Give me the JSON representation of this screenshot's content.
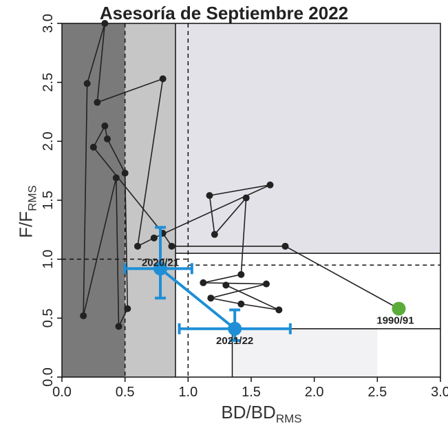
{
  "chart_data": {
    "type": "scatter",
    "title": "Asesoría de Septiembre 2022",
    "xlabel_main": "BD/BD",
    "xlabel_sub": "RMS",
    "ylabel_main": "F/F",
    "ylabel_sub": "RMS",
    "xlim": [
      0,
      3.0
    ],
    "ylim": [
      0,
      3.0
    ],
    "xticks": [
      "0.0",
      "0.5",
      "1.0",
      "1.5",
      "2.0",
      "2.5",
      "3.0"
    ],
    "yticks": [
      "0.0",
      "0.5",
      "1.0",
      "1.5",
      "2.0",
      "2.5",
      "3.0"
    ],
    "reference_lines": {
      "bd_limit": 0.5,
      "bd_msy": 0.9,
      "bd_target": 1.0,
      "f_target": 1.0,
      "f_limit": 0.95
    },
    "series": [
      {
        "values": [
          {
            "x": 2.67,
            "y": 0.58
          },
          {
            "x": 1.77,
            "y": 1.11
          },
          {
            "x": 0.87,
            "y": 1.11
          },
          {
            "x": 0.8,
            "y": 1.22
          },
          {
            "x": 0.25,
            "y": 1.95
          },
          {
            "x": 0.34,
            "y": 2.13
          },
          {
            "x": 0.36,
            "y": 2.02
          },
          {
            "x": 0.5,
            "y": 1.73
          },
          {
            "x": 0.52,
            "y": 0.58
          },
          {
            "x": 0.45,
            "y": 0.43
          },
          {
            "x": 0.43,
            "y": 1.69
          },
          {
            "x": 0.17,
            "y": 0.52
          },
          {
            "x": 0.2,
            "y": 2.49
          },
          {
            "x": 0.34,
            "y": 3.0
          },
          {
            "x": 0.28,
            "y": 2.33
          },
          {
            "x": 0.8,
            "y": 2.53
          },
          {
            "x": 0.6,
            "y": 1.11
          },
          {
            "x": 0.73,
            "y": 1.18
          },
          {
            "x": 1.65,
            "y": 1.63
          },
          {
            "x": 1.17,
            "y": 1.54
          },
          {
            "x": 1.21,
            "y": 1.21
          },
          {
            "x": 1.46,
            "y": 1.52
          },
          {
            "x": 1.42,
            "y": 0.87
          },
          {
            "x": 1.12,
            "y": 0.8
          },
          {
            "x": 1.62,
            "y": 0.79
          },
          {
            "x": 1.18,
            "y": 0.67
          },
          {
            "x": 1.42,
            "y": 0.62
          },
          {
            "x": 1.72,
            "y": 0.57
          },
          {
            "x": 1.3,
            "y": 0.78
          }
        ]
      }
    ],
    "assessments": [
      {
        "label": "2020/21",
        "x": 0.78,
        "y": 0.92,
        "x_err": [
          0.5,
          1.03
        ],
        "y_err": [
          0.67,
          1.27
        ]
      },
      {
        "label": "2021/22",
        "x": 1.37,
        "y": 0.41,
        "x_err": [
          0.93,
          1.81
        ],
        "y_err": [
          0.31,
          0.57
        ]
      }
    ],
    "start_label": "1990/91",
    "start_point": {
      "x": 2.67,
      "y": 0.58
    },
    "colors": {
      "zone_dark": "#7a7a7a",
      "zone_mid": "#c6c6c6",
      "zone_light": "#e2e2e8",
      "trajectory": "#222222",
      "current": "#1e8fd6",
      "start": "#5aad3a"
    },
    "grid": false,
    "legend": "none"
  }
}
